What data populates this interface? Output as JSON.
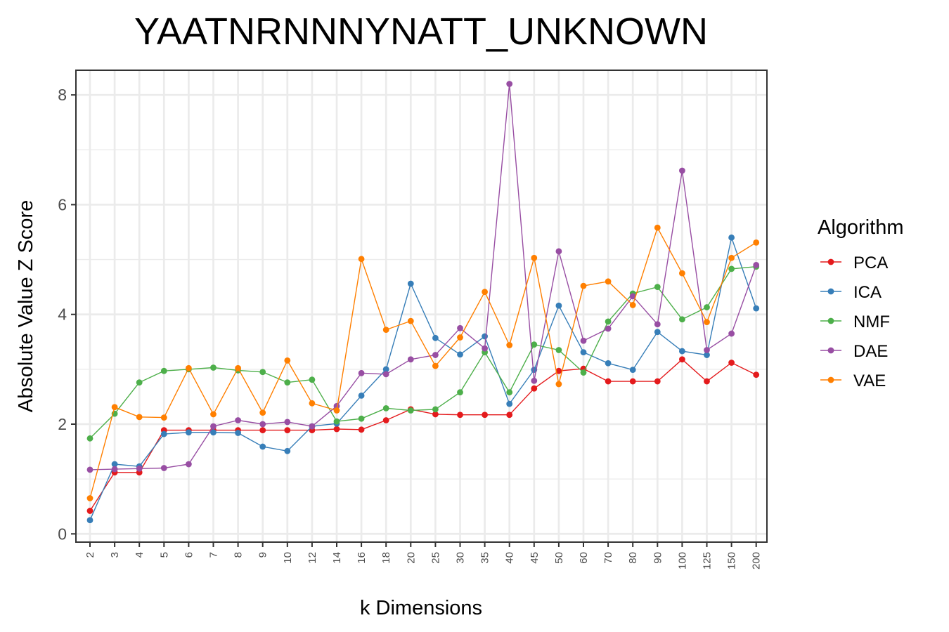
{
  "chart_data": {
    "type": "line",
    "title": "YAATNRNNNYNATT_UNKNOWN",
    "xlabel": "k Dimensions",
    "ylabel": "Absolute Value Z Score",
    "ylim": [
      -0.15,
      8.45
    ],
    "yticks": [
      0,
      2,
      4,
      6,
      8
    ],
    "grid": true,
    "legend_title": "Algorithm",
    "legend_position": "right",
    "categories": [
      "2",
      "3",
      "4",
      "5",
      "6",
      "7",
      "8",
      "9",
      "10",
      "12",
      "14",
      "16",
      "18",
      "20",
      "25",
      "30",
      "35",
      "40",
      "45",
      "50",
      "60",
      "70",
      "80",
      "90",
      "100",
      "125",
      "150",
      "200"
    ],
    "series": [
      {
        "name": "PCA",
        "color": "#E41A1C",
        "values": [
          0.42,
          1.12,
          1.12,
          1.89,
          1.89,
          1.89,
          1.89,
          1.89,
          1.89,
          1.89,
          1.91,
          1.9,
          2.07,
          2.27,
          2.18,
          2.17,
          2.17,
          2.17,
          2.65,
          2.97,
          3.01,
          2.78,
          2.78,
          2.78,
          3.18,
          2.78,
          3.12,
          2.9
        ]
      },
      {
        "name": "ICA",
        "color": "#377EB8",
        "values": [
          0.25,
          1.27,
          1.23,
          1.82,
          1.85,
          1.85,
          1.84,
          1.59,
          1.51,
          1.96,
          2.01,
          2.52,
          3.0,
          4.56,
          3.57,
          3.27,
          3.6,
          2.37,
          2.99,
          4.16,
          3.31,
          3.11,
          2.99,
          3.68,
          3.33,
          3.26,
          5.4,
          4.11
        ]
      },
      {
        "name": "NMF",
        "color": "#4DAF4A",
        "values": [
          1.74,
          2.19,
          2.76,
          2.97,
          3.0,
          3.03,
          2.98,
          2.95,
          2.76,
          2.81,
          2.05,
          2.1,
          2.29,
          2.25,
          2.27,
          2.58,
          3.31,
          2.58,
          3.45,
          3.35,
          2.94,
          3.87,
          4.38,
          4.5,
          3.91,
          4.13,
          4.83,
          4.87
        ]
      },
      {
        "name": "DAE",
        "color": "#984EA3",
        "values": [
          1.17,
          1.18,
          1.19,
          1.2,
          1.27,
          1.96,
          2.07,
          2.0,
          2.04,
          1.96,
          2.33,
          2.93,
          2.91,
          3.18,
          3.26,
          3.75,
          3.38,
          8.2,
          2.79,
          5.15,
          3.52,
          3.74,
          4.33,
          3.82,
          6.62,
          3.35,
          3.65,
          4.9
        ]
      },
      {
        "name": "VAE",
        "color": "#FF7F00",
        "values": [
          0.65,
          2.31,
          2.13,
          2.12,
          3.02,
          2.18,
          3.02,
          2.21,
          3.16,
          2.38,
          2.25,
          5.01,
          3.72,
          3.88,
          3.06,
          3.58,
          4.41,
          3.44,
          5.03,
          2.73,
          4.52,
          4.6,
          4.17,
          5.58,
          4.75,
          3.86,
          5.03,
          5.31
        ]
      }
    ]
  }
}
